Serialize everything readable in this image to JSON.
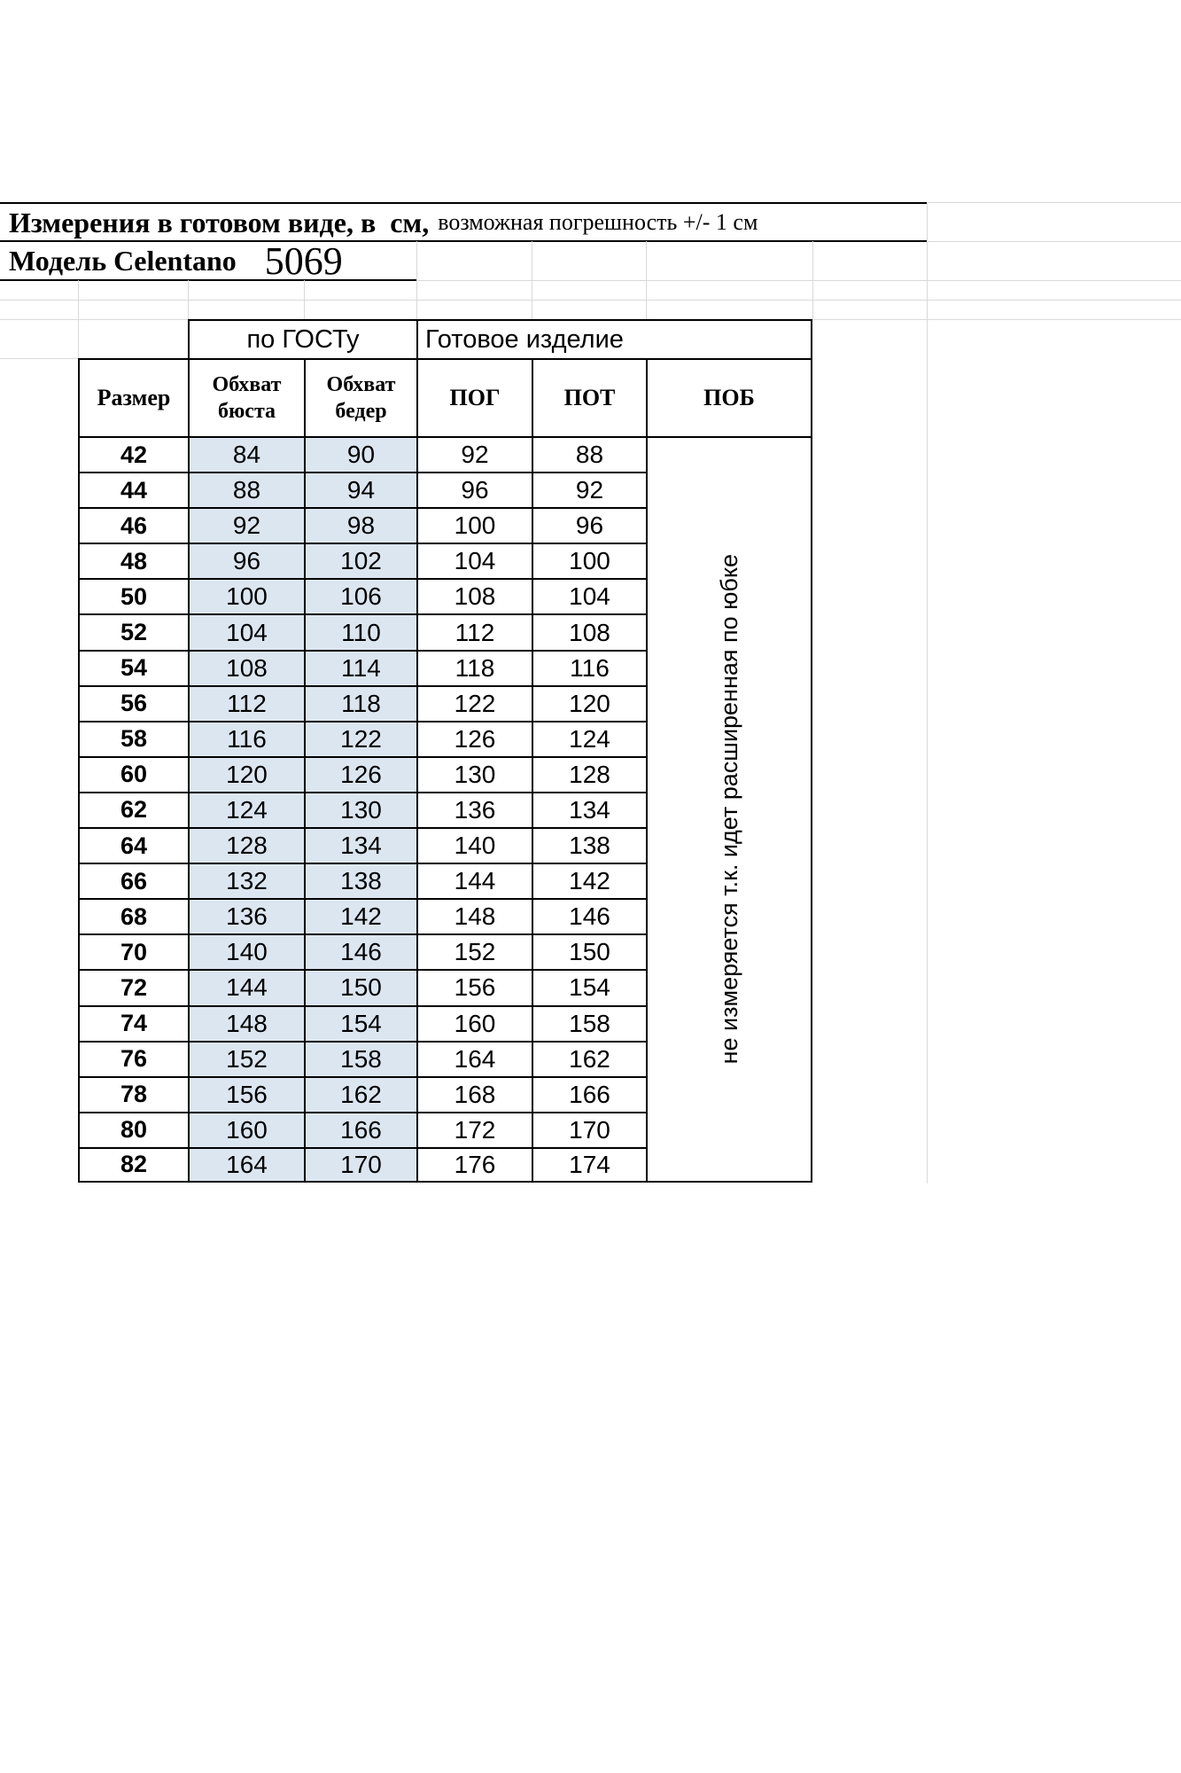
{
  "title": {
    "bold": "Измерения в готовом виде, в  см,",
    "normal": "возможная погрешность +/- 1 см"
  },
  "model": {
    "label": "Модель Celentano",
    "number": "5069"
  },
  "table": {
    "group_gost": "по ГОСТу",
    "group_ready": "Готовое изделие",
    "headers": [
      "Размер",
      "Обхват\nбюста",
      "Обхват\nбедер",
      "ПОГ",
      "ПОТ",
      "ПОБ"
    ],
    "pob_note": "не измеряется т.к. идет расширенная по юбке",
    "rows": [
      [
        42,
        84,
        90,
        92,
        88
      ],
      [
        44,
        88,
        94,
        96,
        92
      ],
      [
        46,
        92,
        98,
        100,
        96
      ],
      [
        48,
        96,
        102,
        104,
        100
      ],
      [
        50,
        100,
        106,
        108,
        104
      ],
      [
        52,
        104,
        110,
        112,
        108
      ],
      [
        54,
        108,
        114,
        118,
        116
      ],
      [
        56,
        112,
        118,
        122,
        120
      ],
      [
        58,
        116,
        122,
        126,
        124
      ],
      [
        60,
        120,
        126,
        130,
        128
      ],
      [
        62,
        124,
        130,
        136,
        134
      ],
      [
        64,
        128,
        134,
        140,
        138
      ],
      [
        66,
        132,
        138,
        144,
        142
      ],
      [
        68,
        136,
        142,
        148,
        146
      ],
      [
        70,
        140,
        146,
        152,
        150
      ],
      [
        72,
        144,
        150,
        156,
        154
      ],
      [
        74,
        148,
        154,
        160,
        158
      ],
      [
        76,
        152,
        158,
        164,
        162
      ],
      [
        78,
        156,
        162,
        168,
        166
      ],
      [
        80,
        160,
        166,
        172,
        170
      ],
      [
        82,
        164,
        170,
        176,
        174
      ]
    ]
  },
  "colors": {
    "highlight": "#dce6f1",
    "gridline": "#d9d9d9",
    "border": "#000000"
  }
}
